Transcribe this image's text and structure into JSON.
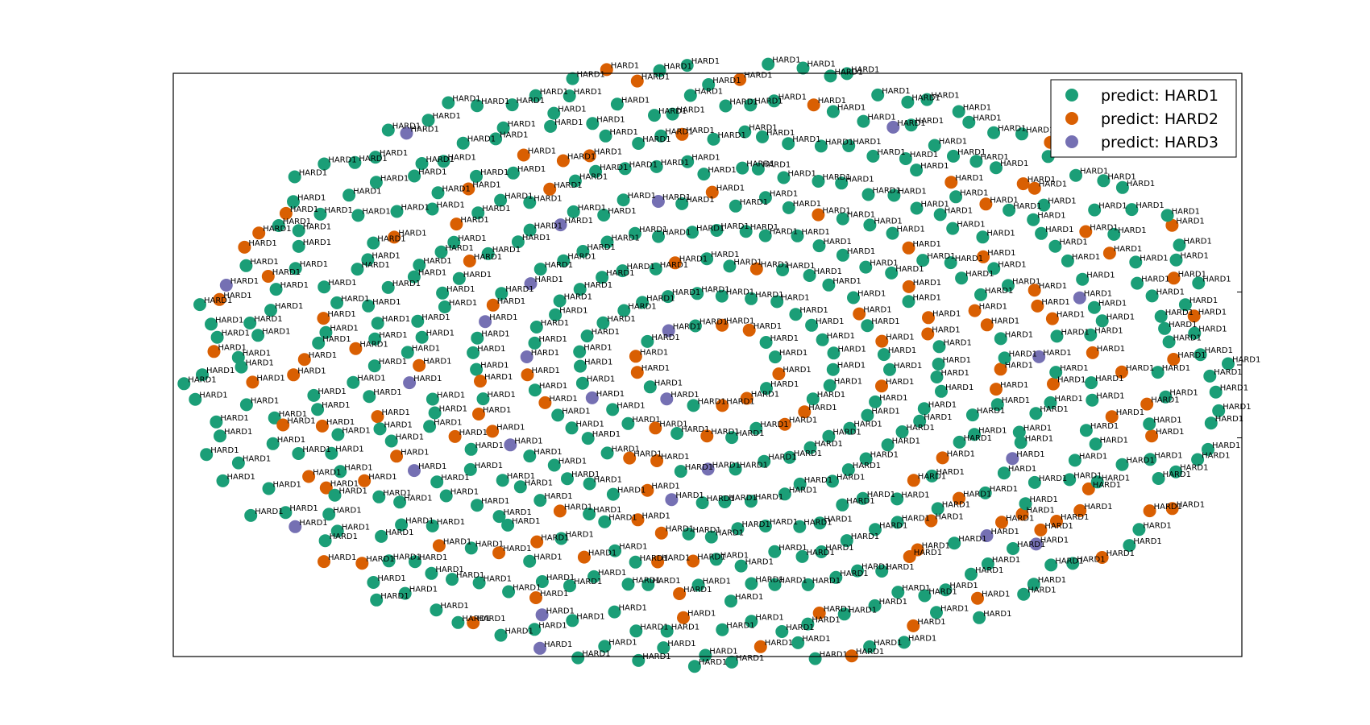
{
  "chart_data": {
    "type": "scatter",
    "title": "",
    "xlabel": "",
    "ylabel": "",
    "xlim": [
      -1.05,
      1.05
    ],
    "ylim": [
      -1.0,
      1.0
    ],
    "axis_ticks_visible": false,
    "grid": false,
    "legend_position": "top-right",
    "point_label": "HARD1",
    "point_count": 600,
    "layout_note": "points arranged in concentric rings filling an ellipse; each point annotated with its label",
    "series": [
      {
        "name": "predict: HARD1",
        "color": "#1b9e77",
        "share": 0.78
      },
      {
        "name": "predict: HARD2",
        "color": "#d95f02",
        "share": 0.18
      },
      {
        "name": "predict: HARD3",
        "color": "#7570b3",
        "share": 0.04
      }
    ]
  }
}
